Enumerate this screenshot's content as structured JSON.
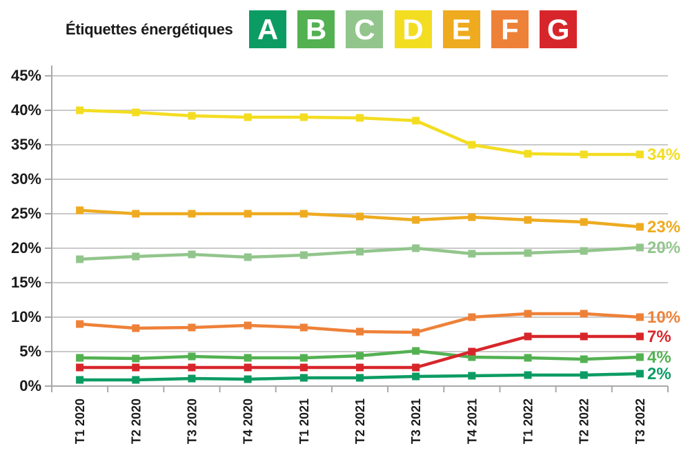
{
  "header": {
    "title": "Étiquettes énergétiques",
    "labels": [
      {
        "letter": "A",
        "color": "#0c9c63"
      },
      {
        "letter": "B",
        "color": "#53b152"
      },
      {
        "letter": "C",
        "color": "#92c58c"
      },
      {
        "letter": "D",
        "color": "#f3dd21"
      },
      {
        "letter": "E",
        "color": "#eeab20"
      },
      {
        "letter": "F",
        "color": "#ee8138"
      },
      {
        "letter": "G",
        "color": "#d7262b"
      }
    ]
  },
  "chart_data": {
    "type": "line",
    "title": "Étiquettes énergétiques",
    "xlabel": "",
    "ylabel": "",
    "categories": [
      "T1 2020",
      "T2 2020",
      "T3 2020",
      "T4 2020",
      "T1 2021",
      "T2 2021",
      "T3 2021",
      "T4 2021",
      "T1 2022",
      "T2 2022",
      "T3 2022"
    ],
    "series": [
      {
        "name": "A",
        "color": "#0c9c63",
        "end_label": "2%",
        "values": [
          0.9,
          0.9,
          1.1,
          1.0,
          1.2,
          1.2,
          1.4,
          1.5,
          1.6,
          1.6,
          1.8
        ]
      },
      {
        "name": "B",
        "color": "#53b152",
        "end_label": "4%",
        "values": [
          4.1,
          4.0,
          4.3,
          4.1,
          4.1,
          4.4,
          5.1,
          4.2,
          4.1,
          3.9,
          4.2
        ]
      },
      {
        "name": "C",
        "color": "#92c58c",
        "end_label": "20%",
        "values": [
          18.4,
          18.8,
          19.1,
          18.7,
          19.0,
          19.5,
          20.0,
          19.2,
          19.3,
          19.6,
          20.1
        ]
      },
      {
        "name": "D",
        "color": "#f3dd21",
        "end_label": "34%",
        "values": [
          40.0,
          39.7,
          39.2,
          39.0,
          39.0,
          38.9,
          38.5,
          35.0,
          33.7,
          33.6,
          33.6
        ]
      },
      {
        "name": "E",
        "color": "#eeab20",
        "end_label": "23%",
        "values": [
          25.5,
          25.0,
          25.0,
          25.0,
          25.0,
          24.6,
          24.1,
          24.5,
          24.1,
          23.8,
          23.1
        ]
      },
      {
        "name": "F",
        "color": "#ee8138",
        "end_label": "10%",
        "values": [
          9.0,
          8.4,
          8.5,
          8.8,
          8.5,
          7.9,
          7.8,
          10.0,
          10.5,
          10.5,
          10.0
        ]
      },
      {
        "name": "G",
        "color": "#d7262b",
        "end_label": "7%",
        "values": [
          2.7,
          2.7,
          2.7,
          2.7,
          2.7,
          2.7,
          2.7,
          5.0,
          7.2,
          7.2,
          7.2
        ]
      }
    ],
    "y_ticks": [
      45,
      40,
      35,
      30,
      25,
      20,
      15,
      10,
      5,
      0
    ],
    "y_tick_labels": [
      "45%",
      "40%",
      "35%",
      "30%",
      "25%",
      "20%",
      "15%",
      "10%",
      "5%",
      "0%"
    ],
    "ylim": [
      0,
      45
    ],
    "grid": true,
    "legend_position": "top"
  }
}
